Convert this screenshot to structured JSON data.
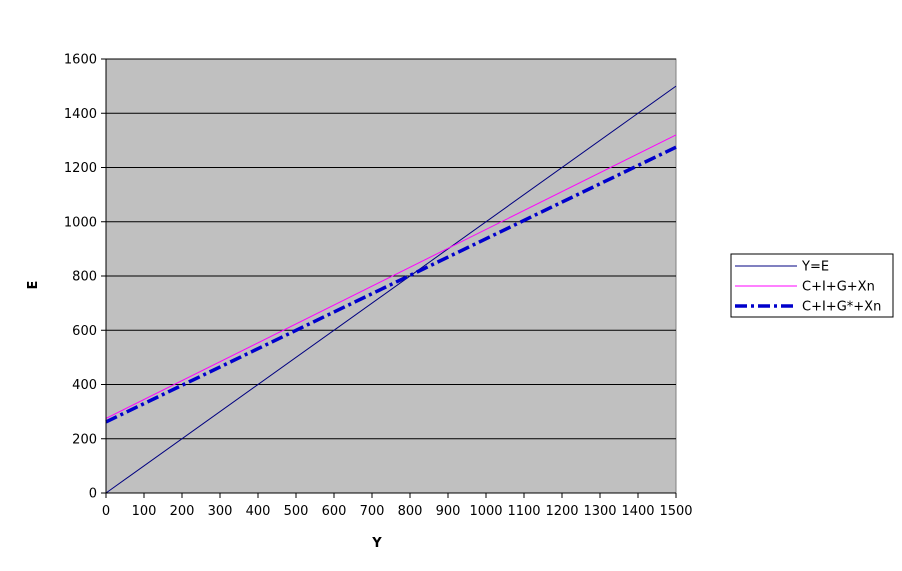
{
  "chart_data": {
    "type": "line",
    "xlabel": "Y",
    "ylabel": "E",
    "xlim": [
      0,
      1500
    ],
    "ylim": [
      0,
      1600
    ],
    "x_ticks": [
      0,
      100,
      200,
      300,
      400,
      500,
      600,
      700,
      800,
      900,
      1000,
      1100,
      1200,
      1300,
      1400,
      1500
    ],
    "y_ticks": [
      0,
      200,
      400,
      600,
      800,
      1000,
      1200,
      1400,
      1600
    ],
    "grid": "horizontal",
    "plot_background": "#c0c0c0",
    "legend_position": "right",
    "series": [
      {
        "name": "Y=E",
        "color": "#000080",
        "style": "solid-thin",
        "x": [
          0,
          1500
        ],
        "y": [
          0,
          1500
        ]
      },
      {
        "name": "C+I+G+Xn",
        "color": "#ff00ff",
        "style": "solid-thin",
        "x": [
          0,
          1500
        ],
        "y": [
          275,
          1320
        ]
      },
      {
        "name": "C+I+G*+Xn",
        "color": "#0000cc",
        "style": "dash-dot-thick",
        "x": [
          0,
          1500
        ],
        "y": [
          262,
          1275
        ]
      }
    ]
  }
}
